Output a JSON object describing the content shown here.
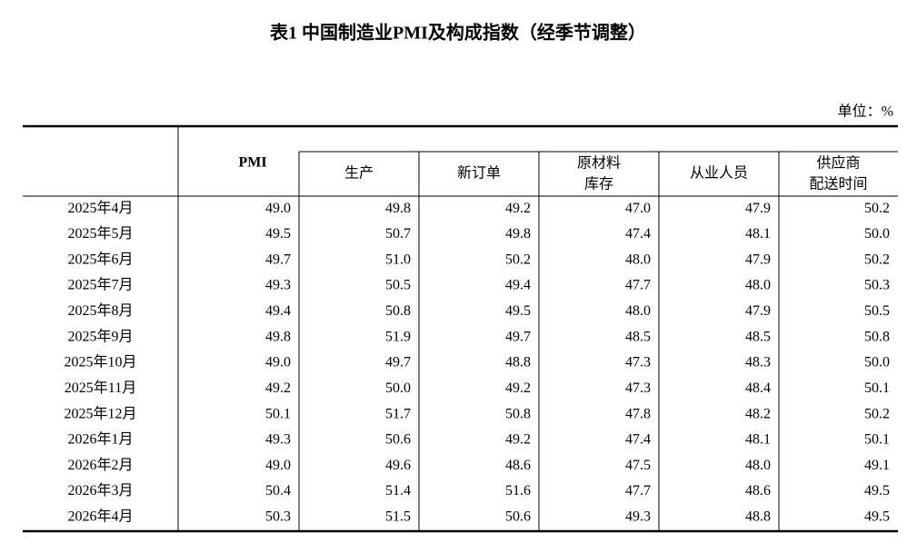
{
  "title": "表1 中国制造业PMI及构成指数（经季节调整）",
  "unit": "单位：%",
  "table": {
    "main_header": "PMI",
    "sub_headers": [
      [
        "生产"
      ],
      [
        "新订单"
      ],
      [
        "原材料",
        "库存"
      ],
      [
        "从业人员"
      ],
      [
        "供应商",
        "配送时间"
      ]
    ],
    "rows": [
      [
        "2025年4月",
        "49.0",
        "49.8",
        "49.2",
        "47.0",
        "47.9",
        "50.2"
      ],
      [
        "2025年5月",
        "49.5",
        "50.7",
        "49.8",
        "47.4",
        "48.1",
        "50.0"
      ],
      [
        "2025年6月",
        "49.7",
        "51.0",
        "50.2",
        "48.0",
        "47.9",
        "50.2"
      ],
      [
        "2025年7月",
        "49.3",
        "50.5",
        "49.4",
        "47.7",
        "48.0",
        "50.3"
      ],
      [
        "2025年8月",
        "49.4",
        "50.8",
        "49.5",
        "48.0",
        "47.9",
        "50.5"
      ],
      [
        "2025年9月",
        "49.8",
        "51.9",
        "49.7",
        "48.5",
        "48.5",
        "50.8"
      ],
      [
        "2025年10月",
        "49.0",
        "49.7",
        "48.8",
        "47.3",
        "48.3",
        "50.0"
      ],
      [
        "2025年11月",
        "49.2",
        "50.0",
        "49.2",
        "47.3",
        "48.4",
        "50.1"
      ],
      [
        "2025年12月",
        "50.1",
        "51.7",
        "50.8",
        "47.8",
        "48.2",
        "50.2"
      ],
      [
        "2026年1月",
        "49.3",
        "50.6",
        "49.2",
        "47.4",
        "48.1",
        "50.1"
      ],
      [
        "2026年2月",
        "49.0",
        "49.6",
        "48.6",
        "47.5",
        "48.0",
        "49.1"
      ],
      [
        "2026年3月",
        "50.4",
        "51.4",
        "51.6",
        "47.7",
        "48.6",
        "49.5"
      ],
      [
        "2026年4月",
        "50.3",
        "51.5",
        "50.6",
        "49.3",
        "48.8",
        "49.5"
      ]
    ]
  }
}
